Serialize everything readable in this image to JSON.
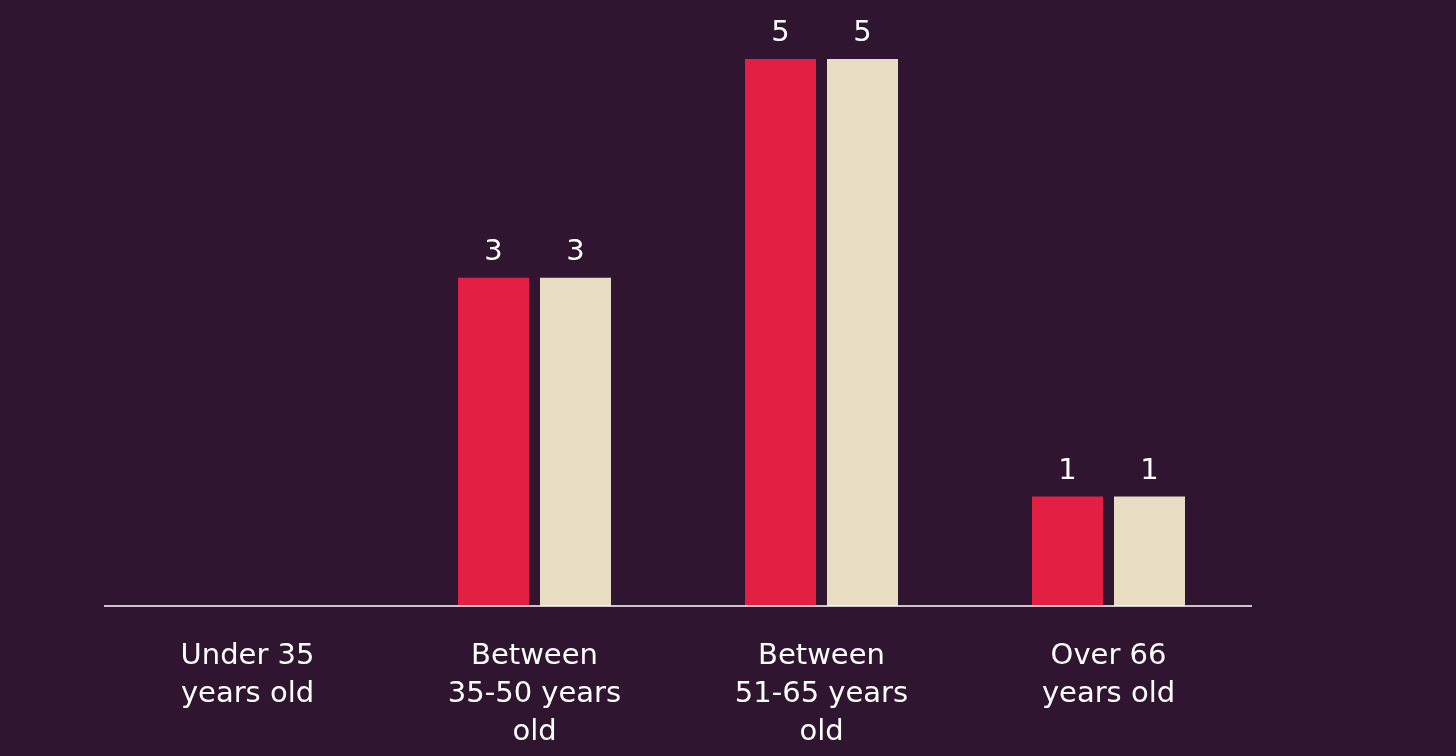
{
  "chart_data": {
    "type": "bar",
    "categories": [
      "Under 35 years old",
      "Between 35-50 years old",
      "Between 51-65 years old",
      "Over 66 years old"
    ],
    "series": [
      {
        "color": "#e31f43",
        "values": [
          null,
          3,
          5,
          1
        ]
      },
      {
        "color": "#e8dcc3",
        "values": [
          null,
          3,
          5,
          1
        ]
      }
    ],
    "data_labels": true,
    "tick_labels": "x",
    "grid": false,
    "legend": false
  }
}
